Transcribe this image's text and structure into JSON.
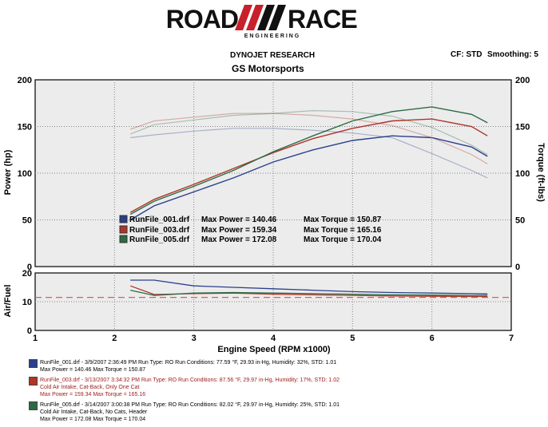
{
  "logo": {
    "word_left": "ROAD",
    "word_right": "RACE",
    "tagline": "E N G I N E E R I N G"
  },
  "header": {
    "title": "DYNOJET RESEARCH",
    "subtitle": "GS Motorsports",
    "cf": "CF: STD",
    "smoothing": "Smoothing: 5"
  },
  "colors": {
    "run1": "#2b3f8c",
    "run3": "#b03428",
    "run5": "#2a6b45",
    "ref": "#e05a5a",
    "bg": "#ececec"
  },
  "chart_data": {
    "type": "line",
    "xlabel": "Engine Speed (RPM x1000)",
    "x_ticks": [
      "1",
      "2",
      "3",
      "4",
      "5",
      "6",
      "7"
    ],
    "xlim": [
      1,
      7
    ],
    "top": {
      "ylabel_left": "Power (hp)",
      "ylabel_right": "Torque (ft-lbs)",
      "ylim": [
        0,
        200
      ],
      "y_ticks": [
        "0",
        "50",
        "100",
        "150",
        "200"
      ],
      "y_ticks_right": [
        "0",
        "50",
        "100",
        "150",
        "200"
      ],
      "x": [
        2.2,
        2.5,
        3.0,
        3.5,
        4.0,
        4.5,
        5.0,
        5.5,
        6.0,
        6.5,
        6.7
      ],
      "series": [
        {
          "name": "RunFile_001.drf",
          "kind": "power",
          "values": [
            50,
            65,
            80,
            95,
            112,
            125,
            135,
            140,
            138,
            128,
            118
          ]
        },
        {
          "name": "RunFile_003.drf",
          "kind": "power",
          "values": [
            58,
            72,
            88,
            105,
            122,
            137,
            148,
            156,
            158,
            150,
            140
          ]
        },
        {
          "name": "RunFile_005.drf",
          "kind": "power",
          "values": [
            56,
            70,
            86,
            103,
            123,
            140,
            156,
            166,
            171,
            163,
            154
          ]
        },
        {
          "name": "RunFile_001.drf",
          "kind": "torque",
          "values": [
            138,
            141,
            145,
            148,
            148,
            146,
            143,
            138,
            121,
            103,
            95
          ]
        },
        {
          "name": "RunFile_003.drf",
          "kind": "torque",
          "values": [
            147,
            156,
            160,
            164,
            164,
            162,
            158,
            151,
            138,
            120,
            110
          ]
        },
        {
          "name": "RunFile_005.drf",
          "kind": "torque",
          "values": [
            142,
            152,
            157,
            162,
            164,
            167,
            166,
            161,
            149,
            130,
            120
          ]
        }
      ]
    },
    "bottom": {
      "ylabel": "Air/Fuel",
      "ylim": [
        0,
        20
      ],
      "y_ticks": [
        "0",
        "10",
        "20"
      ],
      "x": [
        2.2,
        2.5,
        3.0,
        3.5,
        4.0,
        4.5,
        5.0,
        5.5,
        6.0,
        6.5,
        6.7
      ],
      "reference": 11.5,
      "series": [
        {
          "name": "RunFile_001.drf",
          "values": [
            17.5,
            17.5,
            15.5,
            15,
            14.5,
            14,
            13.5,
            13.2,
            13,
            12.8,
            12.7
          ]
        },
        {
          "name": "RunFile_003.drf",
          "values": [
            15.5,
            12.5,
            12.8,
            13,
            12.6,
            12.4,
            12.2,
            12,
            11.9,
            11.8,
            11.8
          ]
        },
        {
          "name": "RunFile_005.drf",
          "values": [
            14,
            12.2,
            13,
            13.2,
            13,
            12.8,
            12.6,
            12.4,
            12.3,
            12.2,
            12.2
          ]
        }
      ]
    },
    "annotations": [
      {
        "file": "RunFile_001.drf",
        "power": "Max Power = 140.46",
        "torque": "Max Torque = 150.87"
      },
      {
        "file": "RunFile_003.drf",
        "power": "Max Power = 159.34",
        "torque": "Max Torque = 165.16"
      },
      {
        "file": "RunFile_005.drf",
        "power": "Max Power = 172.08",
        "torque": "Max Torque = 170.04"
      }
    ]
  },
  "legend": [
    {
      "line1": "RunFile_001.drf - 3/9/2007 2:36:49 PM  Run Type: RO  Run Conditions: 77.59 °F, 29.93 in-Hg,  Humidity:  32%, STD: 1.01",
      "line2": "",
      "line3": "Max Power = 140.46  Max Torque = 150.87"
    },
    {
      "line1": "RunFile_003.drf - 3/13/2007 3:34:32 PM  Run Type: RO  Run Conditions: 87.56 °F, 29.97 in-Hg,  Humidity:  17%, STD: 1.02",
      "line2": "Cold Air Intake, Cat-Back, Only One Cat",
      "line3": "Max Power = 159.34  Max Torque = 165.16"
    },
    {
      "line1": "RunFile_005.drf - 3/14/2007 3:00:38 PM  Run Type: RO  Run Conditions: 82.02 °F, 29.97 in-Hg,  Humidity:  25%, STD: 1.01",
      "line2": "Cold Air Intake, Cat-Back, No Cats, Header",
      "line3": "Max Power = 172.08  Max Torque = 170.04"
    }
  ]
}
